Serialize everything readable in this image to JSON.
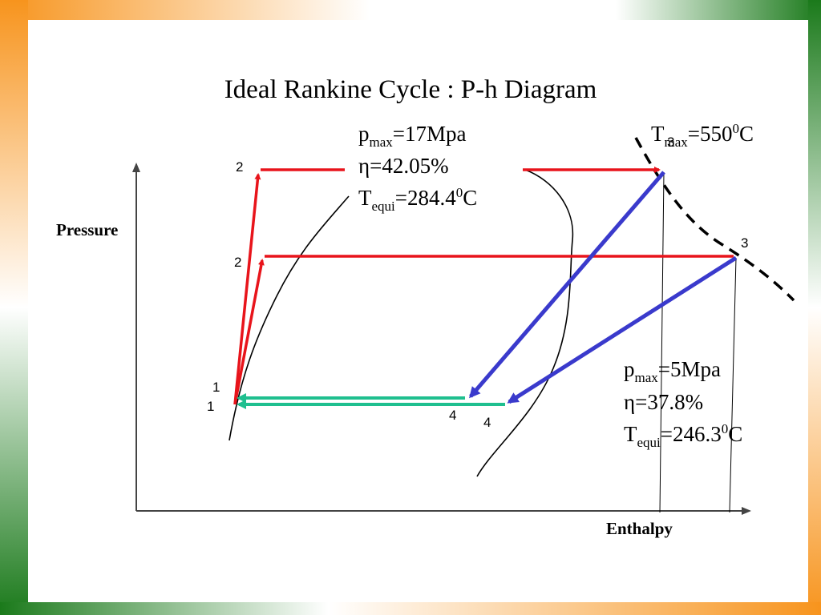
{
  "title": "Ideal Rankine Cycle : P-h Diagram",
  "axes": {
    "y_label": "Pressure",
    "x_label": "Enthalpy"
  },
  "high_pressure_cycle": {
    "pmax": {
      "symbol": "p",
      "subscript": "max",
      "rest": "=17Mpa"
    },
    "efficiency": "η=42.05%",
    "tequi": {
      "symbol": "T",
      "subscript": "equi",
      "value": "=284.4",
      "superscript": "0",
      "unit": "C"
    }
  },
  "tmax": {
    "symbol": "T",
    "subscript": "max",
    "value": "=550",
    "superscript": "0",
    "unit": "C"
  },
  "low_pressure_cycle": {
    "pmax": {
      "symbol": "p",
      "subscript": "max",
      "rest": "=5Mpa"
    },
    "efficiency": "η=37.8%",
    "tequi": {
      "symbol": "T",
      "subscript": "equi",
      "value": "=246.3",
      "superscript": "0",
      "unit": "C"
    }
  },
  "point_labels": [
    "2",
    "2",
    "3",
    "3",
    "1",
    "1",
    "4",
    "4"
  ]
}
